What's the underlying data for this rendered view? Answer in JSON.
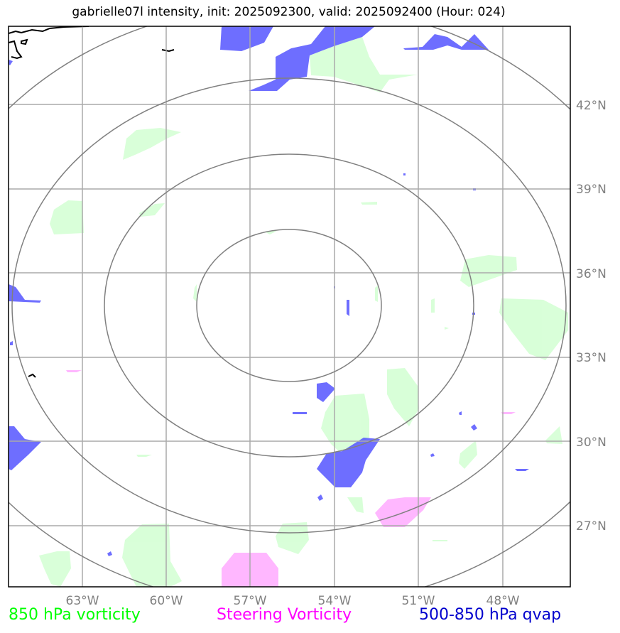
{
  "title": "gabrielle07l intensity, init: 2025092300, valid: 2025092400 (Hour: 024)",
  "map": {
    "lon_ticks": [
      "63°W",
      "60°W",
      "57°W",
      "54°W",
      "51°W",
      "48°W"
    ],
    "lat_ticks": [
      "42°N",
      "39°N",
      "36°N",
      "33°N",
      "30°N",
      "27°N"
    ],
    "range_rings": 4,
    "colors": {
      "vorticity_850": "#ccffcc",
      "steering_vorticity": "#ff99ff",
      "qvap_500_850": "#5555ff",
      "grid": "#aaaaaa",
      "rings": "#808080"
    }
  },
  "legend": {
    "vorticity_850": "850 hPa vorticity",
    "steering_vorticity": "Steering Vorticity",
    "qvap": "500-850 hPa qvap"
  }
}
